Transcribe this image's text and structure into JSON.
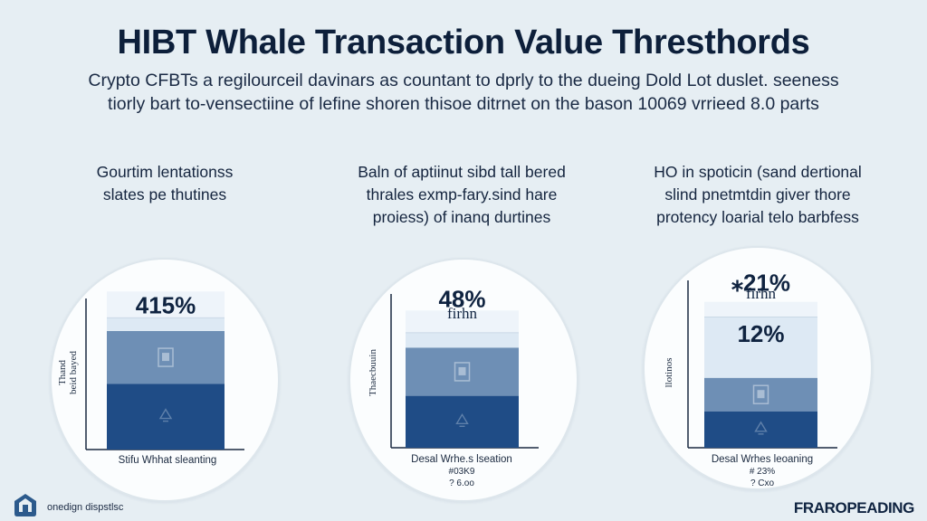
{
  "title": "HIBT Whale Transaction Value Thresthords",
  "subtitle_lines": [
    "Crypto CFBTs a regilourceil davinars as countant to dprly to the dueing Dold Lot duslet. seeness",
    "tiorly bart to-vensectiine of lefine shoren thisoe ditrnet on the bason 10069 vrrieed 8.0 parts"
  ],
  "colors": {
    "bg": "#e6eef3",
    "dark": "#1f4c86",
    "mid": "#6e8fb5",
    "light": "#dde9f4",
    "top": "#eef4fa"
  },
  "chart_data": [
    {
      "type": "bar",
      "heading_lines": [
        "Gourtim lentationss",
        "slates pe thutines"
      ],
      "ylabel_lines": [
        "Thand",
        "beid bayed"
      ],
      "top_label": "415%",
      "inner_labels": [],
      "xlabel": "Stifu Whhat sleanting",
      "below_labels": [],
      "segments": [
        {
          "role": "dark",
          "value": 35
        },
        {
          "role": "mid",
          "value": 28
        },
        {
          "role": "light",
          "value": 7
        },
        {
          "role": "top",
          "value": 14
        }
      ],
      "icons": [
        "document-icon",
        "bell-icon"
      ]
    },
    {
      "type": "bar",
      "heading_lines": [
        "Baln of aptiinut sibd tall bered",
        "thrales exmp-fary.sind hare",
        "proiess) of inanq durtines"
      ],
      "ylabel_lines": [
        "Thaecbuuin"
      ],
      "top_label": "48%",
      "inner_labels": [
        "firhn"
      ],
      "xlabel": "Desal Wrhe.s lseation",
      "below_labels": [
        "#03K9",
        "? 6.oo"
      ],
      "segments": [
        {
          "role": "dark",
          "value": 28
        },
        {
          "role": "mid",
          "value": 26
        },
        {
          "role": "light",
          "value": 8
        },
        {
          "role": "top",
          "value": 12
        }
      ],
      "icons": [
        "document-icon",
        "bell-icon"
      ]
    },
    {
      "type": "bar",
      "heading_lines": [
        "HO in spoticin (sand dertional",
        "slind pnetmtdin giver thore",
        "protency loarial telo barbfess"
      ],
      "ylabel_lines": [
        "llotinos"
      ],
      "top_label": "⁎21%",
      "inner_labels": [
        "firhn",
        "12%"
      ],
      "xlabel": "Desal Wrhes leoaning",
      "below_labels": [
        "# 23%",
        "? Cxo"
      ],
      "segments": [
        {
          "role": "dark",
          "value": 24
        },
        {
          "role": "mid",
          "value": 22
        },
        {
          "role": "light",
          "value": 40
        },
        {
          "role": "top",
          "value": 10
        }
      ],
      "icons": [
        "document-icon",
        "bell-icon"
      ]
    }
  ],
  "footer": {
    "left_text": "onedign dispstlsc",
    "right_text": "FRAROPEADING",
    "logo_icon": "house-shield-icon"
  }
}
